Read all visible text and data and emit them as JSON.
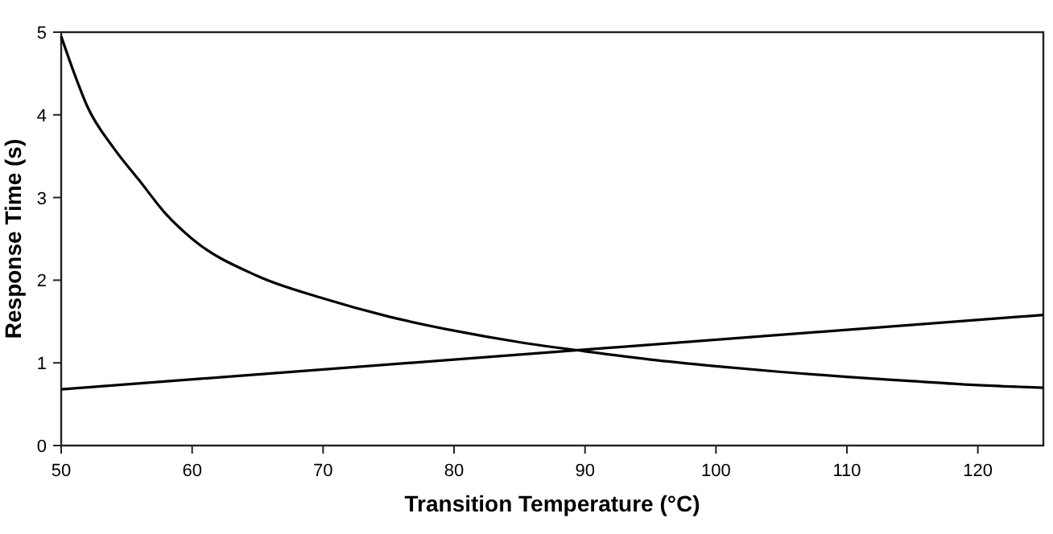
{
  "chart_data": {
    "type": "line",
    "xlabel": "Transition Temperature (°C)",
    "ylabel": "Response Time (s)",
    "xlim": [
      50,
      125
    ],
    "xticks": [
      50,
      60,
      70,
      80,
      90,
      100,
      110,
      120
    ],
    "ylim": [
      0,
      5
    ],
    "yticks": [
      0,
      1,
      2,
      3,
      4,
      5
    ],
    "grid": false,
    "marker": "none",
    "line_style": "solid",
    "series": [
      {
        "color": "#000000",
        "x": [
          50,
          51,
          52,
          54,
          56,
          58,
          60,
          65,
          70,
          75,
          80,
          85,
          90,
          95,
          100,
          105,
          110,
          115,
          120,
          125
        ],
        "values": [
          4.95,
          4.5,
          4.1,
          3.6,
          3.2,
          2.8,
          2.5,
          2.05,
          1.78,
          1.56,
          1.39,
          1.25,
          1.14,
          1.04,
          0.96,
          0.89,
          0.83,
          0.78,
          0.73,
          0.7
        ]
      },
      {
        "color": "#000000",
        "x": [
          50,
          125
        ],
        "values": [
          0.68,
          1.58
        ]
      }
    ]
  }
}
